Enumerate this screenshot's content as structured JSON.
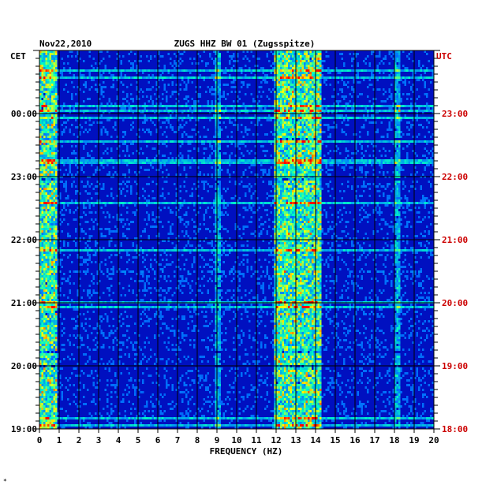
{
  "chart_data": {
    "type": "heatmap",
    "date_label": "Nov22,2010",
    "title": "ZUGS HHZ BW 01 (Zugsspitze)",
    "left_timezone": "CET",
    "right_timezone": "UTC",
    "xlabel": "FREQUENCY (HZ)",
    "x_ticks": [
      "0",
      "1",
      "2",
      "3",
      "4",
      "5",
      "6",
      "7",
      "8",
      "9",
      "10",
      "11",
      "12",
      "13",
      "14",
      "15",
      "16",
      "17",
      "18",
      "19",
      "20"
    ],
    "xlim": [
      0,
      20
    ],
    "left_time_ticks": [
      "00:00",
      "23:00",
      "22:00",
      "21:00",
      "20:00",
      "19:00"
    ],
    "right_time_ticks": [
      "23:00",
      "22:00",
      "21:00",
      "20:00",
      "19:00",
      "18:00"
    ],
    "grid": true,
    "colors": {
      "right_axis": "#cc0000",
      "background_map": "#0000c8",
      "high_energy": "#ff0000"
    },
    "energy_bands_hz": [
      {
        "from": 0,
        "to": 0.8,
        "level": "high"
      },
      {
        "from": 11.8,
        "to": 14.2,
        "level": "high"
      },
      {
        "from": 8.9,
        "to": 9.1,
        "level": "medium"
      },
      {
        "from": 18.0,
        "to": 18.2,
        "level": "medium"
      }
    ]
  },
  "footer_mark": "*"
}
